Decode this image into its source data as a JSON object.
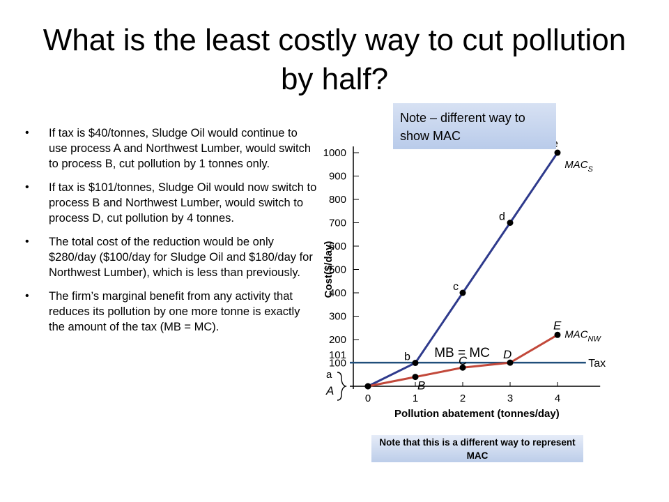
{
  "title": "What is the least costly way to cut pollution by half?",
  "bullets": [
    "If tax is $40/tonnes, Sludge Oil would continue to use process A and Northwest Lumber, would switch to process B, cut pollution by 1 tonnes only.",
    "If tax is $101/tonnes, Sludge Oil would now switch to process B and Northwest Lumber, would switch to process D, cut pollution by 4 tonnes.",
    "The total cost of the reduction would be only $280/day ($100/day for Sludge Oil and $180/day for Northwest Lumber), which is less than previously.",
    "The firm’s marginal benefit from any activity that reduces its pollution by one more tonne is exactly the amount of the tax (MB = MC)."
  ],
  "bullet_symbol": "•",
  "note_box": "Note – different way to show MAC",
  "bottom_note": "Note that this is a different way to represent MAC",
  "colors": {
    "mac_s": "#2e3a8c",
    "mac_nw": "#c2483a",
    "tax": "#1f4e7a",
    "note_box": "#c6d4ef"
  },
  "chart_data": {
    "type": "line",
    "xlabel": "Pollution abatement (tonnes/day)",
    "ylabel": "Cost($/day)",
    "x_ticks": [
      "0",
      "1",
      "2",
      "3",
      "4"
    ],
    "y_ticks": [
      "100",
      "200",
      "300",
      "400",
      "500",
      "600",
      "700",
      "800",
      "900",
      "1000"
    ],
    "y_extra_label": "101",
    "y_bottom_labels": [
      "a",
      "A"
    ],
    "xlim": [
      0,
      4.9
    ],
    "ylim": [
      0,
      1050
    ],
    "series": [
      {
        "name": "MAC",
        "name_sub": "S",
        "color_key": "mac_s",
        "points": [
          {
            "x": 0,
            "y": 0,
            "label": "a"
          },
          {
            "x": 1,
            "y": 100,
            "label": "b"
          },
          {
            "x": 2,
            "y": 400,
            "label": "c"
          },
          {
            "x": 3,
            "y": 700,
            "label": "d"
          },
          {
            "x": 4,
            "y": 1000,
            "label": "e"
          }
        ]
      },
      {
        "name": "MAC",
        "name_sub": "NW",
        "color_key": "mac_nw",
        "points": [
          {
            "x": 0,
            "y": 0,
            "label": "A"
          },
          {
            "x": 1,
            "y": 40,
            "label": "B"
          },
          {
            "x": 2,
            "y": 80,
            "label": "C"
          },
          {
            "x": 3,
            "y": 101,
            "label": "D"
          },
          {
            "x": 4,
            "y": 220,
            "label": "E"
          }
        ]
      }
    ],
    "tax_line": {
      "y": 101,
      "label": "Tax"
    },
    "mb_label": "MB = MC"
  }
}
